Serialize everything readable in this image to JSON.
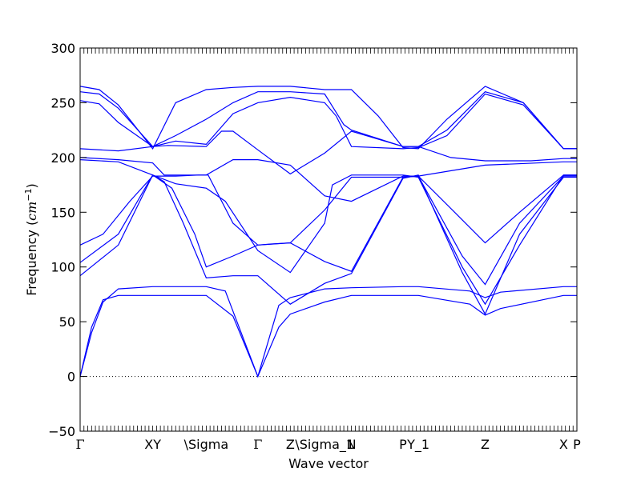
{
  "chart_data": {
    "type": "line",
    "xlabel": "Wave vector",
    "ylabel": "Frequency (",
    "ylabel_unit": "cm",
    "ylabel_exp": "−1",
    "ylabel_close": ")",
    "ylim": [
      -50,
      300
    ],
    "yticks": [
      -50,
      0,
      50,
      100,
      150,
      200,
      250,
      300
    ],
    "xlim": [
      0,
      13
    ],
    "hline": {
      "y": 0,
      "style": "dotted",
      "color": "#000000"
    },
    "line_color": "#0000ff",
    "kpoints": [
      {
        "label": "Γ",
        "x": 0.0
      },
      {
        "label": "XY",
        "x": 1.9
      },
      {
        "label": "\\Sigma",
        "x": 3.3
      },
      {
        "label": "Γ",
        "x": 4.65
      },
      {
        "label": "Z",
        "x": 5.5
      },
      {
        "label": "\\Sigma_1",
        "x": 6.4
      },
      {
        "label": "N",
        "x": 7.1
      },
      {
        "label": "P",
        "x": 8.45
      },
      {
        "label": "Y_1",
        "x": 8.85
      },
      {
        "label": "Z",
        "x": 10.6
      },
      {
        "label": "X",
        "x": 12.65
      },
      {
        "label": "P",
        "x": 13.0
      }
    ],
    "series": [
      {
        "x": [
          0,
          0.3,
          0.6,
          1.0,
          1.9,
          3.3,
          4.0,
          4.65,
          5.2,
          5.5,
          6.4,
          7.1,
          8.45,
          8.85,
          10.2,
          10.6,
          11.0,
          12.65,
          13.0
        ],
        "y": [
          0,
          45,
          70,
          74,
          74,
          74,
          55,
          0,
          45,
          57,
          68,
          74,
          74,
          74,
          66,
          56,
          62,
          74,
          74
        ]
      },
      {
        "x": [
          0,
          0.3,
          0.6,
          1.0,
          1.9,
          3.3,
          3.8,
          4.65,
          5.2,
          5.5,
          6.4,
          7.1,
          8.45,
          8.85,
          10.2,
          10.6,
          11.0,
          12.65,
          13.0
        ],
        "y": [
          0,
          40,
          68,
          80,
          82,
          82,
          78,
          0,
          65,
          72,
          80,
          81,
          82,
          82,
          78,
          72,
          77,
          82,
          82
        ]
      },
      {
        "x": [
          0,
          1.0,
          1.9,
          2.2,
          2.7,
          3.3,
          4.0,
          4.65,
          5.5,
          6.4,
          7.1,
          8.45,
          8.85,
          10.0,
          10.6,
          11.5,
          12.65,
          13.0
        ],
        "y": [
          92,
          120,
          184,
          178,
          140,
          90,
          92,
          92,
          66,
          85,
          94,
          181,
          184,
          95,
          57,
          130,
          182,
          182
        ]
      },
      {
        "x": [
          0,
          1.0,
          1.9,
          2.4,
          3.0,
          3.3,
          4.0,
          4.65,
          5.5,
          6.4,
          7.1,
          8.45,
          8.85,
          10.0,
          10.6,
          11.5,
          12.65,
          13.0
        ],
        "y": [
          104,
          130,
          184,
          172,
          130,
          100,
          110,
          120,
          122,
          105,
          96,
          182,
          183,
          110,
          84,
          140,
          183,
          183
        ]
      },
      {
        "x": [
          0,
          0.6,
          1.3,
          1.9,
          2.5,
          3.1,
          3.35,
          4.0,
          4.65,
          5.0,
          5.5,
          6.4,
          7.1,
          8.45,
          8.85,
          9.8,
          10.6,
          11.5,
          12.65,
          13.0
        ],
        "y": [
          120,
          130,
          160,
          183,
          183,
          184,
          184,
          140,
          120,
          121,
          122,
          152,
          182,
          182,
          183,
          150,
          122,
          150,
          184,
          184
        ]
      },
      {
        "x": [
          0,
          1.0,
          1.9,
          2.5,
          3.3,
          3.8,
          4.65,
          5.5,
          6.4,
          6.6,
          7.1,
          8.45,
          8.85,
          10.0,
          10.6,
          11.5,
          12.65,
          13.0
        ],
        "y": [
          198,
          196,
          184,
          176,
          172,
          160,
          115,
          95,
          140,
          175,
          184,
          184,
          182,
          100,
          66,
          120,
          184,
          184
        ]
      },
      {
        "x": [
          0,
          1.0,
          1.9,
          2.2,
          3.3,
          4.0,
          4.65,
          5.5,
          6.4,
          7.1,
          8.45,
          8.85,
          10.6,
          12.65,
          13.0
        ],
        "y": [
          200,
          198,
          195,
          184,
          184,
          198,
          198,
          193,
          165,
          160,
          183,
          183,
          193,
          196,
          196
        ]
      },
      {
        "x": [
          0,
          1.0,
          1.9,
          2.3,
          3.3,
          3.7,
          4.0,
          4.65,
          5.5,
          6.4,
          7.1,
          8.45,
          8.85,
          9.7,
          10.6,
          11.8,
          12.65,
          13.0
        ],
        "y": [
          208,
          206,
          210,
          211,
          210,
          224,
          224,
          207,
          185,
          204,
          224,
          210,
          210,
          200,
          197,
          197,
          199,
          199
        ]
      },
      {
        "x": [
          0,
          0.5,
          1.0,
          1.9,
          2.5,
          3.3,
          4.0,
          4.65,
          5.5,
          6.4,
          6.7,
          7.1,
          8.45,
          8.85,
          9.6,
          10.6,
          11.6,
          12.65,
          13.0
        ],
        "y": [
          252,
          249,
          232,
          210,
          215,
          212,
          240,
          250,
          255,
          250,
          238,
          210,
          208,
          209,
          220,
          258,
          248,
          208,
          208
        ]
      },
      {
        "x": [
          0,
          0.5,
          1.0,
          1.9,
          2.5,
          3.3,
          4.0,
          4.65,
          5.5,
          6.4,
          6.9,
          7.1,
          8.45,
          8.85,
          9.6,
          10.6,
          11.6,
          12.65,
          13.0
        ],
        "y": [
          260,
          258,
          245,
          210,
          220,
          235,
          250,
          260,
          260,
          258,
          230,
          225,
          210,
          210,
          225,
          260,
          250,
          208,
          208
        ]
      },
      {
        "x": [
          0,
          0.5,
          1.0,
          1.9,
          2.5,
          3.3,
          4.0,
          4.65,
          5.5,
          6.4,
          7.1,
          7.8,
          8.45,
          8.85,
          9.6,
          10.6,
          11.6,
          12.65,
          13.0
        ],
        "y": [
          265,
          262,
          248,
          208,
          250,
          262,
          264,
          265,
          265,
          262,
          262,
          238,
          209,
          208,
          235,
          265,
          250,
          208,
          208
        ]
      }
    ]
  }
}
